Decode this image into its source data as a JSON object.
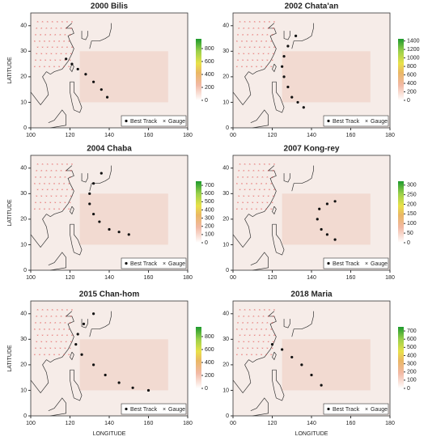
{
  "panels": [
    {
      "title": "2000 Bilis",
      "ylabel": "LATITUDE",
      "xlim": [
        100,
        180
      ],
      "ylim": [
        0,
        45
      ],
      "xticks": [
        100,
        120,
        140,
        160,
        180
      ],
      "yticks": [
        0,
        10,
        20,
        30,
        40
      ],
      "colorbar_lim": [
        0,
        950
      ],
      "colorbar_ticks": [
        0,
        200,
        400,
        600,
        800
      ],
      "legend": [
        "Best Track",
        "Gauge"
      ],
      "track": [
        [
          139,
          12
        ],
        [
          136,
          15
        ],
        [
          132,
          18
        ],
        [
          128,
          21
        ],
        [
          124,
          23
        ],
        [
          121,
          25
        ],
        [
          118,
          27
        ]
      ]
    },
    {
      "title": "2002 Chata'an",
      "xlim": [
        100,
        180
      ],
      "ylim": [
        0,
        45
      ],
      "xticks": [
        {
          "value": 100,
          "label": "00"
        },
        120,
        140,
        160,
        180
      ],
      "yticks": [
        0,
        10,
        20,
        30,
        40
      ],
      "colorbar_lim": [
        0,
        1450
      ],
      "colorbar_ticks": [
        0,
        200,
        400,
        600,
        800,
        1000,
        1200,
        1400
      ],
      "legend": [
        "Best Track",
        "Gauge"
      ],
      "track": [
        [
          136,
          8
        ],
        [
          133,
          10
        ],
        [
          130,
          12
        ],
        [
          128,
          16
        ],
        [
          126,
          20
        ],
        [
          125,
          24
        ],
        [
          126,
          28
        ],
        [
          128,
          32
        ],
        [
          132,
          36
        ]
      ]
    },
    {
      "title": "2004 Chaba",
      "ylabel": "LATITUDE",
      "xlim": [
        100,
        180
      ],
      "ylim": [
        0,
        45
      ],
      "xticks": [
        100,
        120,
        140,
        160,
        180
      ],
      "yticks": [
        0,
        10,
        20,
        30,
        40
      ],
      "colorbar_lim": [
        0,
        750
      ],
      "colorbar_ticks": [
        0,
        100,
        200,
        300,
        400,
        500,
        600,
        700
      ],
      "legend": [
        "Best Track",
        "Gauge"
      ],
      "track": [
        [
          150,
          14
        ],
        [
          145,
          15
        ],
        [
          140,
          16
        ],
        [
          135,
          19
        ],
        [
          132,
          22
        ],
        [
          130,
          26
        ],
        [
          130,
          30
        ],
        [
          132,
          34
        ],
        [
          136,
          38
        ]
      ]
    },
    {
      "title": "2007 Kong-rey",
      "xlim": [
        100,
        180
      ],
      "ylim": [
        0,
        45
      ],
      "xticks": [
        {
          "value": 100,
          "label": "00"
        },
        120,
        140,
        160,
        180
      ],
      "yticks": [
        0,
        10,
        20,
        30,
        40
      ],
      "colorbar_lim": [
        0,
        320
      ],
      "colorbar_ticks": [
        0,
        50,
        100,
        150,
        200,
        250,
        300
      ],
      "legend": [
        "Best Track",
        "Gauge"
      ],
      "track": [
        [
          152,
          12
        ],
        [
          148,
          14
        ],
        [
          145,
          16
        ],
        [
          143,
          20
        ],
        [
          144,
          24
        ],
        [
          148,
          26
        ],
        [
          152,
          27
        ]
      ]
    },
    {
      "title": "2015 Chan-hom",
      "ylabel": "LATITUDE",
      "xlabel": "LONGITUDE",
      "xlim": [
        100,
        180
      ],
      "ylim": [
        0,
        45
      ],
      "xticks": [
        100,
        120,
        140,
        160,
        180
      ],
      "yticks": [
        0,
        10,
        20,
        30,
        40
      ],
      "colorbar_lim": [
        0,
        950
      ],
      "colorbar_ticks": [
        0,
        200,
        400,
        600,
        800
      ],
      "legend": [
        "Best Track",
        "Gauge"
      ],
      "track": [
        [
          160,
          10
        ],
        [
          152,
          11
        ],
        [
          145,
          13
        ],
        [
          138,
          16
        ],
        [
          132,
          20
        ],
        [
          126,
          24
        ],
        [
          123,
          28
        ],
        [
          124,
          32
        ],
        [
          127,
          36
        ],
        [
          132,
          40
        ]
      ]
    },
    {
      "title": "2018 Maria",
      "xlabel": "LONGITUDE",
      "xlim": [
        100,
        180
      ],
      "ylim": [
        0,
        45
      ],
      "xticks": [
        {
          "value": 100,
          "label": "00"
        },
        120,
        140,
        160,
        180
      ],
      "yticks": [
        0,
        10,
        20,
        30,
        40
      ],
      "colorbar_lim": [
        0,
        750
      ],
      "colorbar_ticks": [
        0,
        100,
        200,
        300,
        400,
        500,
        600,
        700
      ],
      "legend": [
        "Best Track",
        "Gauge"
      ],
      "track": [
        [
          145,
          12
        ],
        [
          140,
          16
        ],
        [
          135,
          20
        ],
        [
          130,
          23
        ],
        [
          125,
          26
        ],
        [
          120,
          28
        ]
      ]
    }
  ]
}
